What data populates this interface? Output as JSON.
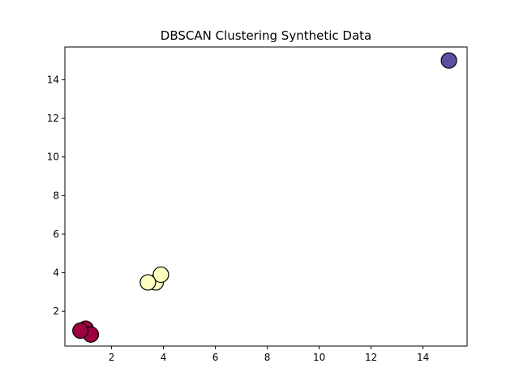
{
  "chart_data": {
    "type": "scatter",
    "title": "DBSCAN Clustering Synthetic Data",
    "xlabel": "",
    "ylabel": "",
    "xlim": [
      0.2,
      15.7
    ],
    "ylim": [
      0.2,
      15.7
    ],
    "x_ticks": [
      2,
      4,
      6,
      8,
      10,
      12,
      14
    ],
    "y_ticks": [
      2,
      4,
      6,
      8,
      10,
      12,
      14
    ],
    "grid": false,
    "legend": "none",
    "series": [
      {
        "cluster": 0,
        "color": "#9e0142",
        "points": [
          {
            "x": 1.0,
            "y": 1.1
          },
          {
            "x": 1.2,
            "y": 0.8
          },
          {
            "x": 0.8,
            "y": 1.0
          }
        ]
      },
      {
        "cluster": 1,
        "color": "#ffffbf",
        "points": [
          {
            "x": 3.7,
            "y": 3.5
          },
          {
            "x": 3.9,
            "y": 3.9
          },
          {
            "x": 3.4,
            "y": 3.5
          }
        ]
      },
      {
        "cluster": 2,
        "color": "#5e4fa2",
        "points": [
          {
            "x": 15.0,
            "y": 15.0
          }
        ]
      }
    ]
  }
}
